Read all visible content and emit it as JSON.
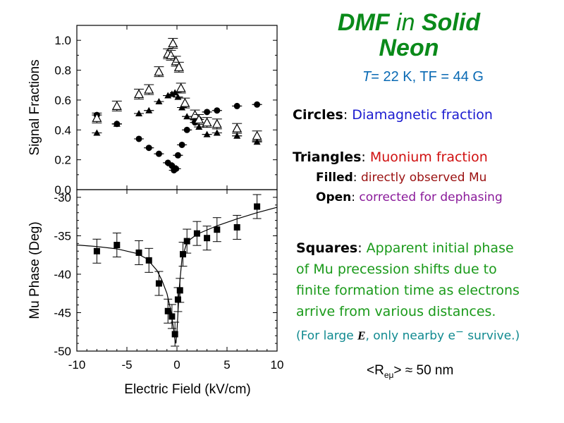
{
  "title": {
    "part1": "DMF",
    "part2": "in",
    "part3": "Solid",
    "part4": "Neon",
    "cond_T": "T",
    "cond_rest": "= 22 K, TF = 44 G"
  },
  "legend": {
    "circles_key": "Circles",
    "circles_val": "Diamagnetic fraction",
    "triangles_key": "Triangles",
    "triangles_val": "Muonium fraction",
    "filled_key": "Filled",
    "filled_val": "directly observed Mu",
    "open_key": "Open",
    "open_val": "corrected for dephasing",
    "squares_key": "Squares",
    "squares_line1": "Apparent initial phase",
    "squares_line2": "of Mu precession shifts due to",
    "squares_line3": "finite formation time as electrons",
    "squares_line4": "arrive from various distances.",
    "note_pre": "(For large",
    "note_E": "E",
    "note_mid": ", only nearby e",
    "note_sup": "−",
    "note_post": " survive.)",
    "reu_pre": "<R",
    "reu_sub": "eμ",
    "reu_post": "> ≈ 50 nm"
  },
  "chart_data": [
    {
      "type": "scatter",
      "ylabel": "Signal Fractions",
      "ylim": [
        0.0,
        1.1
      ],
      "yticks": [
        "0.0",
        "0.2",
        "0.4",
        "0.6",
        "0.8",
        "1.0"
      ],
      "ytick_values": [
        0.0,
        0.2,
        0.4,
        0.6,
        0.8,
        1.0
      ],
      "xlim": [
        -10,
        10
      ],
      "series": [
        {
          "marker": "circle",
          "points": [
            {
              "x": -8,
              "y": 0.5
            },
            {
              "x": -6,
              "y": 0.44
            },
            {
              "x": -3.8,
              "y": 0.34
            },
            {
              "x": -2.8,
              "y": 0.28
            },
            {
              "x": -1.8,
              "y": 0.24
            },
            {
              "x": -0.9,
              "y": 0.18
            },
            {
              "x": -0.5,
              "y": 0.16
            },
            {
              "x": -0.3,
              "y": 0.13
            },
            {
              "x": -0.1,
              "y": 0.14
            },
            {
              "x": 0.1,
              "y": 0.23
            },
            {
              "x": 0.5,
              "y": 0.3
            },
            {
              "x": 1.0,
              "y": 0.4
            },
            {
              "x": 1.8,
              "y": 0.45
            },
            {
              "x": 2.2,
              "y": 0.47
            },
            {
              "x": 3.0,
              "y": 0.52
            },
            {
              "x": 4.0,
              "y": 0.53
            },
            {
              "x": 6.0,
              "y": 0.56
            },
            {
              "x": 8.0,
              "y": 0.57
            }
          ]
        },
        {
          "marker": "filled-triangle",
          "points": [
            {
              "x": -8,
              "y": 0.38
            },
            {
              "x": -6,
              "y": 0.44
            },
            {
              "x": -3.8,
              "y": 0.51
            },
            {
              "x": -2.8,
              "y": 0.53
            },
            {
              "x": -1.8,
              "y": 0.59
            },
            {
              "x": -0.9,
              "y": 0.63
            },
            {
              "x": -0.5,
              "y": 0.64
            },
            {
              "x": -0.2,
              "y": 0.65
            },
            {
              "x": 0.1,
              "y": 0.62
            },
            {
              "x": 0.5,
              "y": 0.55
            },
            {
              "x": 1.0,
              "y": 0.49
            },
            {
              "x": 1.8,
              "y": 0.47
            },
            {
              "x": 2.2,
              "y": 0.42
            },
            {
              "x": 3.0,
              "y": 0.37
            },
            {
              "x": 4.0,
              "y": 0.38
            },
            {
              "x": 6.0,
              "y": 0.36
            },
            {
              "x": 8.0,
              "y": 0.32
            }
          ]
        },
        {
          "marker": "open-triangle",
          "points": [
            {
              "x": -8,
              "y": 0.48
            },
            {
              "x": -6,
              "y": 0.56
            },
            {
              "x": -3.8,
              "y": 0.64
            },
            {
              "x": -2.8,
              "y": 0.67
            },
            {
              "x": -1.8,
              "y": 0.79
            },
            {
              "x": -0.9,
              "y": 0.91
            },
            {
              "x": -0.6,
              "y": 0.9
            },
            {
              "x": -0.4,
              "y": 0.98
            },
            {
              "x": -0.1,
              "y": 0.86
            },
            {
              "x": 0.2,
              "y": 0.82
            },
            {
              "x": 0.4,
              "y": 0.68
            },
            {
              "x": 0.8,
              "y": 0.58
            },
            {
              "x": 1.8,
              "y": 0.5
            },
            {
              "x": 2.2,
              "y": 0.47
            },
            {
              "x": 3.0,
              "y": 0.45
            },
            {
              "x": 4.0,
              "y": 0.44
            },
            {
              "x": 6.0,
              "y": 0.41
            },
            {
              "x": 8.0,
              "y": 0.36
            }
          ]
        }
      ]
    },
    {
      "type": "scatter",
      "xlabel": "Electric Field (kV/cm)",
      "ylabel": "Mu Phase (Deg)",
      "xlim": [
        -10,
        10
      ],
      "ylim": [
        -50,
        -29
      ],
      "xticks": [
        "-10",
        "-5",
        "0",
        "5",
        "10"
      ],
      "xtick_values": [
        -10,
        -5,
        0,
        5,
        10
      ],
      "yticks": [
        "-30",
        "-35",
        "-40",
        "-45",
        "-50"
      ],
      "ytick_values": [
        -30,
        -35,
        -40,
        -45,
        -50
      ],
      "series": [
        {
          "marker": "square",
          "points": [
            {
              "x": -8,
              "y": -37.0
            },
            {
              "x": -6,
              "y": -36.2
            },
            {
              "x": -3.8,
              "y": -37.2
            },
            {
              "x": -2.8,
              "y": -38.2
            },
            {
              "x": -1.8,
              "y": -41.2
            },
            {
              "x": -0.9,
              "y": -44.8
            },
            {
              "x": -0.5,
              "y": -45.5
            },
            {
              "x": -0.2,
              "y": -47.8
            },
            {
              "x": 0.1,
              "y": -43.3
            },
            {
              "x": 0.3,
              "y": -42.1
            },
            {
              "x": 0.6,
              "y": -37.4
            },
            {
              "x": 1.0,
              "y": -35.7
            },
            {
              "x": 2.0,
              "y": -34.7
            },
            {
              "x": 3.0,
              "y": -35.3
            },
            {
              "x": 4.0,
              "y": -34.2
            },
            {
              "x": 6.0,
              "y": -33.9
            },
            {
              "x": 8.0,
              "y": -31.2
            }
          ]
        }
      ],
      "fit_curve": [
        {
          "x": -10,
          "y": -36.2
        },
        {
          "x": -8,
          "y": -36.4
        },
        {
          "x": -6,
          "y": -36.7
        },
        {
          "x": -4,
          "y": -37.3
        },
        {
          "x": -3,
          "y": -38.0
        },
        {
          "x": -2,
          "y": -39.5
        },
        {
          "x": -1.5,
          "y": -40.8
        },
        {
          "x": -1.0,
          "y": -42.5
        },
        {
          "x": -0.6,
          "y": -44.8
        },
        {
          "x": -0.35,
          "y": -47.0
        },
        {
          "x": -0.2,
          "y": -48.5
        },
        {
          "x": -0.1,
          "y": -49.0
        },
        {
          "x": 0.0,
          "y": -47.5
        },
        {
          "x": 0.1,
          "y": -45.0
        },
        {
          "x": 0.25,
          "y": -41.5
        },
        {
          "x": 0.5,
          "y": -38.0
        },
        {
          "x": 1.0,
          "y": -35.8
        },
        {
          "x": 2.0,
          "y": -34.8
        },
        {
          "x": 4.0,
          "y": -33.7
        },
        {
          "x": 6.0,
          "y": -32.8
        },
        {
          "x": 8.0,
          "y": -32.0
        },
        {
          "x": 10.0,
          "y": -31.3
        }
      ]
    }
  ]
}
